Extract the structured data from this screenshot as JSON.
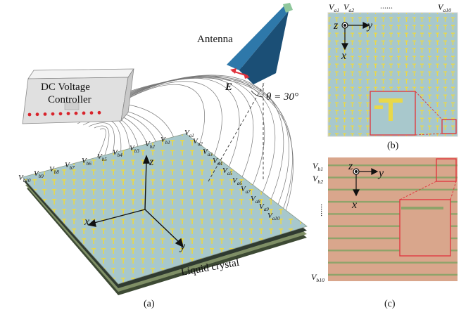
{
  "panel_labels": {
    "a": "(a)",
    "b": "(b)",
    "c": "(c)"
  },
  "controller": {
    "line1": "DC Voltage",
    "line2": "Controller",
    "led_count": 10
  },
  "antenna": {
    "label": "Antenna",
    "field": "E",
    "angle": "θ = 30°"
  },
  "material": {
    "label": "Liquid crystal"
  },
  "voltages_a": {
    "main": "V",
    "subs": [
      "a1",
      "a2",
      "a3",
      "a4",
      "a5",
      "a6",
      "a7",
      "a8",
      "a9",
      "a10"
    ]
  },
  "voltages_b": {
    "main": "V",
    "subs": [
      "b1",
      "b2",
      "b3",
      "b4",
      "b5",
      "b6",
      "b7",
      "b8",
      "b9",
      "b10"
    ]
  },
  "axes": {
    "x": "x",
    "y": "y",
    "z": "z"
  },
  "panel_b": {
    "top_left": "V",
    "top_left_subs": [
      "a1",
      "a2"
    ],
    "dots": "......",
    "top_right_sub": "a10"
  },
  "panel_c": {
    "left_top_subs": [
      "b1",
      "b2"
    ],
    "dots": "......",
    "left_bottom_sub": "b10"
  },
  "colors": {
    "unit_cell": "#a8c8cc",
    "dipole": "#e8d84a",
    "substrate": "#d9a68c",
    "stripe": "#8fa36a",
    "highlight": "#e0323c",
    "antenna": "#2a6a9a",
    "controller": "#e4e4e4"
  }
}
